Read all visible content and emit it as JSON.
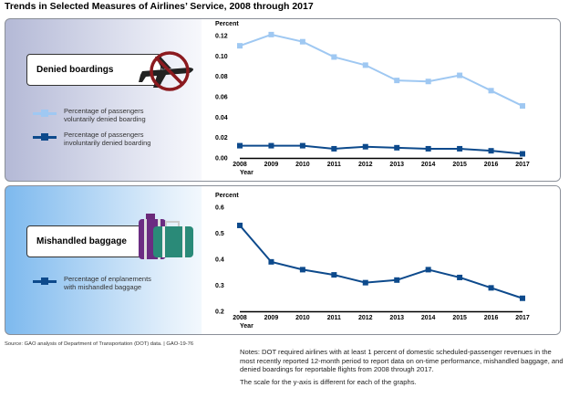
{
  "title": "Trends in Selected Measures of Airlines’ Service, 2008 through 2017",
  "colors": {
    "voluntary": "#9fc8f2",
    "involuntary": "#0d4a8c",
    "baggage": "#0d4a8c"
  },
  "panels": [
    {
      "label": "Denied boardings",
      "icon": "no-airplane-icon",
      "legend": [
        {
          "line1": "Percentage of passengers",
          "line2": "voluntarily denied boarding"
        },
        {
          "line1": "Percentage of passengers",
          "line2": "involuntarily denied boarding"
        }
      ]
    },
    {
      "label": "Mishandled baggage",
      "icon": "luggage-icon",
      "legend": [
        {
          "line1": "Percentage of enplanements",
          "line2": "with mishandled baggage"
        }
      ]
    }
  ],
  "chart_data": [
    {
      "type": "line",
      "ylabel": "Percent",
      "xlabel": "Year",
      "categories": [
        "2008",
        "2009",
        "2010",
        "2011",
        "2012",
        "2013",
        "2014",
        "2015",
        "2016",
        "2017"
      ],
      "ylim": [
        0,
        0.12
      ],
      "yticks": [
        "0.00",
        "0.02",
        "0.04",
        "0.06",
        "0.08",
        "0.10",
        "0.12"
      ],
      "grid": false,
      "series": [
        {
          "name": "Percentage of passengers voluntarily denied boarding",
          "color": "#9fc8f2",
          "values": [
            0.11,
            0.121,
            0.114,
            0.099,
            0.091,
            0.076,
            0.075,
            0.081,
            0.066,
            0.051
          ]
        },
        {
          "name": "Percentage of passengers involuntarily denied boarding",
          "color": "#0d4a8c",
          "values": [
            0.012,
            0.012,
            0.012,
            0.009,
            0.011,
            0.01,
            0.009,
            0.009,
            0.007,
            0.004
          ]
        }
      ]
    },
    {
      "type": "line",
      "ylabel": "Percent",
      "xlabel": "Year",
      "categories": [
        "2008",
        "2009",
        "2010",
        "2011",
        "2012",
        "2013",
        "2014",
        "2015",
        "2016",
        "2017"
      ],
      "ylim": [
        0.2,
        0.6
      ],
      "yticks": [
        "0.2",
        "0.3",
        "0.4",
        "0.5",
        "0.6"
      ],
      "grid": false,
      "series": [
        {
          "name": "Percentage of enplanements with mishandled baggage",
          "color": "#0d4a8c",
          "values": [
            0.53,
            0.39,
            0.36,
            0.34,
            0.31,
            0.32,
            0.36,
            0.33,
            0.29,
            0.25
          ]
        }
      ]
    }
  ],
  "source": "Source: GAO analysis of Department of Transportation (DOT) data.  |  GAO-19-76",
  "notes": [
    "Notes: DOT required airlines with at least 1 percent of domestic scheduled-passenger revenues in the most recently reported 12-month period to report data on on-time performance, mishandled baggage, and denied boardings for reportable flights from 2008 through 2017.",
    "The scale for the y-axis is different for each of the graphs."
  ]
}
